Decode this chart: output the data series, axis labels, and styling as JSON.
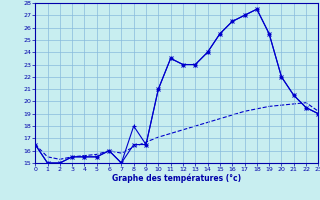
{
  "title": "Graphe des températures (°c)",
  "bg_color": "#c8eef0",
  "grid_color": "#88bbdd",
  "line_color": "#0000cc",
  "axis_color": "#0000aa",
  "xlim": [
    0,
    23
  ],
  "ylim": [
    15,
    28
  ],
  "xticks": [
    0,
    1,
    2,
    3,
    4,
    5,
    6,
    7,
    8,
    9,
    10,
    11,
    12,
    13,
    14,
    15,
    16,
    17,
    18,
    19,
    20,
    21,
    22,
    23
  ],
  "yticks": [
    15,
    16,
    17,
    18,
    19,
    20,
    21,
    22,
    23,
    24,
    25,
    26,
    27,
    28
  ],
  "series1_x": [
    0,
    1,
    2,
    3,
    4,
    5,
    6,
    7,
    8,
    9,
    10,
    11,
    12,
    13,
    14,
    15,
    16,
    17,
    18,
    19,
    20,
    21,
    22,
    23
  ],
  "series1_y": [
    16.5,
    15.0,
    15.0,
    15.5,
    15.5,
    15.5,
    16.0,
    15.0,
    18.0,
    16.5,
    21.0,
    23.5,
    23.0,
    23.0,
    24.0,
    25.5,
    26.5,
    27.0,
    27.5,
    25.5,
    22.0,
    20.5,
    19.5,
    19.0
  ],
  "series2_x": [
    0,
    1,
    2,
    3,
    4,
    5,
    6,
    7,
    8,
    9,
    10,
    11,
    12,
    13,
    14,
    15,
    16,
    17,
    18,
    19,
    20,
    21,
    22,
    23
  ],
  "series2_y": [
    16.5,
    15.0,
    15.0,
    15.5,
    15.5,
    15.5,
    16.0,
    15.0,
    16.5,
    16.5,
    21.0,
    23.5,
    23.0,
    23.0,
    24.0,
    25.5,
    26.5,
    27.0,
    27.5,
    25.5,
    22.0,
    20.5,
    19.5,
    19.0
  ],
  "series3_x": [
    0,
    1,
    2,
    3,
    4,
    5,
    6,
    7,
    8,
    9,
    10,
    11,
    12,
    13,
    14,
    15,
    16,
    17,
    18,
    19,
    20,
    21,
    22,
    23
  ],
  "series3_y": [
    16.5,
    15.5,
    15.3,
    15.5,
    15.6,
    15.7,
    16.0,
    15.8,
    16.3,
    16.7,
    17.1,
    17.4,
    17.7,
    18.0,
    18.3,
    18.6,
    18.9,
    19.2,
    19.4,
    19.6,
    19.7,
    19.8,
    19.9,
    19.2
  ]
}
